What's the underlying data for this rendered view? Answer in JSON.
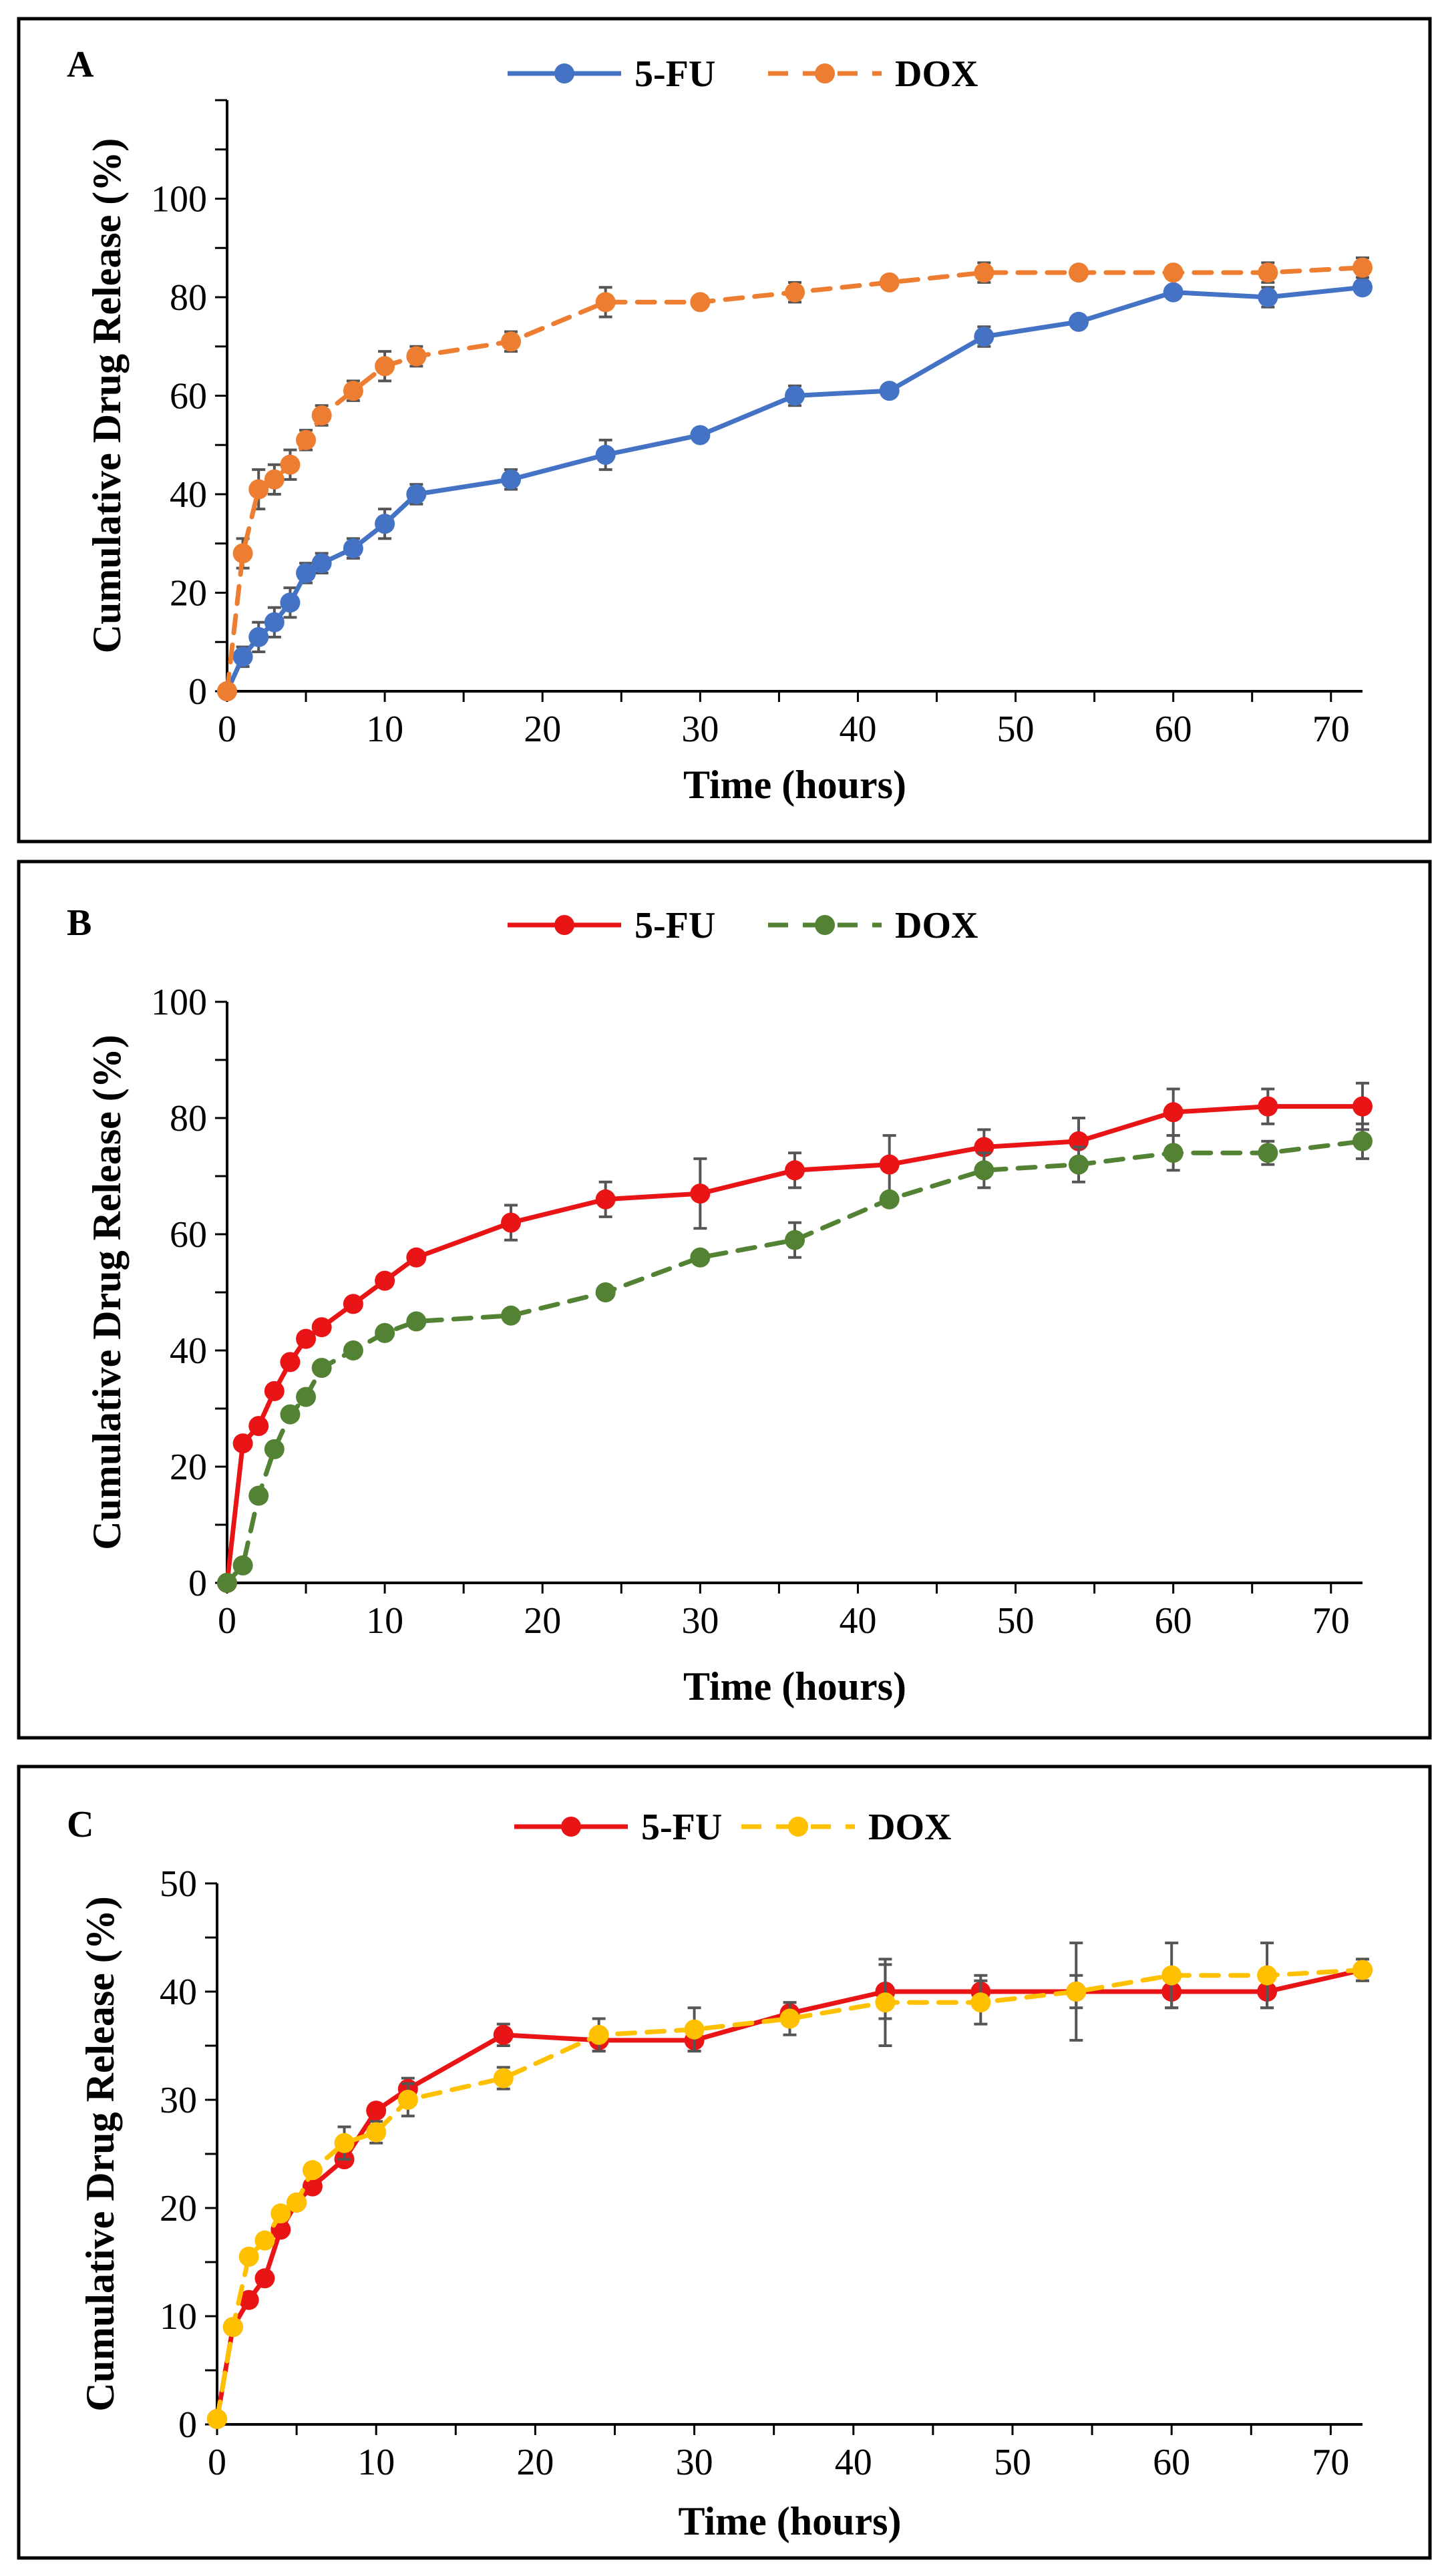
{
  "chart_data": [
    {
      "type": "line",
      "panel_label": "A",
      "title": "",
      "xlabel": "Time (hours)",
      "ylabel": "Cumulative Drug Release (%)",
      "xlim": [
        0,
        72
      ],
      "ylim": [
        0,
        120
      ],
      "xticks": [
        0,
        10,
        20,
        30,
        40,
        50,
        60,
        70
      ],
      "yticks": [
        0,
        20,
        40,
        60,
        80,
        100
      ],
      "ytick_labels": [
        "0",
        "20",
        "40",
        "60",
        "80",
        "100"
      ],
      "xtick_labels": [
        "0",
        "10",
        "20",
        "30",
        "40",
        "50",
        "60",
        "70"
      ],
      "legend": "top-center",
      "grid": false,
      "x": [
        0,
        1,
        2,
        3,
        4,
        5,
        6,
        8,
        10,
        12,
        18,
        24,
        30,
        36,
        42,
        48,
        54,
        60,
        66,
        72
      ],
      "series": [
        {
          "name": "5-FU",
          "color": "#4472C4",
          "dashed": false,
          "values": [
            0,
            7,
            11,
            14,
            18,
            24,
            26,
            29,
            34,
            40,
            43,
            48,
            52,
            60,
            61,
            72,
            75,
            81,
            80,
            82
          ],
          "errors": [
            0,
            2,
            3,
            3,
            3,
            2,
            2,
            2,
            3,
            2,
            2,
            3,
            1,
            2,
            1,
            2,
            1,
            1,
            2,
            1
          ]
        },
        {
          "name": "DOX",
          "color": "#ED7D31",
          "dashed": true,
          "values": [
            0,
            28,
            41,
            43,
            46,
            51,
            56,
            61,
            66,
            68,
            71,
            79,
            79,
            81,
            83,
            85,
            85,
            85,
            85,
            86
          ],
          "errors": [
            0,
            3,
            4,
            3,
            3,
            2,
            2,
            2,
            3,
            2,
            2,
            3,
            1,
            2,
            1,
            2,
            1,
            1,
            2,
            2
          ]
        }
      ]
    },
    {
      "type": "line",
      "panel_label": "B",
      "title": "",
      "xlabel": "Time (hours)",
      "ylabel": "Cumulative Drug Release (%)",
      "xlim": [
        0,
        72
      ],
      "ylim": [
        0,
        100
      ],
      "xticks": [
        0,
        10,
        20,
        30,
        40,
        50,
        60,
        70
      ],
      "yticks": [
        0,
        20,
        40,
        60,
        80,
        100
      ],
      "ytick_labels": [
        "0",
        "20",
        "40",
        "60",
        "80",
        "100"
      ],
      "xtick_labels": [
        "0",
        "10",
        "20",
        "30",
        "40",
        "50",
        "60",
        "70"
      ],
      "legend": "top-center",
      "grid": false,
      "x": [
        0,
        1,
        2,
        3,
        4,
        5,
        6,
        8,
        10,
        12,
        18,
        24,
        30,
        36,
        42,
        48,
        54,
        60,
        66,
        72
      ],
      "series": [
        {
          "name": "5-FU",
          "color": "#E81416",
          "dashed": false,
          "values": [
            0,
            24,
            27,
            33,
            38,
            42,
            44,
            48,
            52,
            56,
            62,
            66,
            67,
            71,
            72,
            75,
            76,
            81,
            82,
            82
          ],
          "errors": [
            0,
            1,
            1,
            1,
            1,
            1,
            1,
            1,
            1,
            1,
            3,
            3,
            6,
            3,
            5,
            3,
            4,
            4,
            3,
            4
          ]
        },
        {
          "name": "DOX",
          "color": "#548235",
          "dashed": true,
          "values": [
            0,
            3,
            15,
            23,
            29,
            32,
            37,
            40,
            43,
            45,
            46,
            50,
            56,
            59,
            66,
            71,
            72,
            74,
            74,
            76
          ],
          "errors": [
            0,
            1,
            1,
            1,
            1,
            1,
            1,
            1,
            1,
            1,
            1,
            1,
            1,
            3,
            1,
            3,
            3,
            3,
            2,
            3
          ]
        }
      ]
    },
    {
      "type": "line",
      "panel_label": "C",
      "title": "",
      "xlabel": "Time (hours)",
      "ylabel": "Cumulative Drug Release (%)",
      "xlim": [
        0,
        72
      ],
      "ylim": [
        0,
        50
      ],
      "xticks": [
        0,
        10,
        20,
        30,
        40,
        50,
        60,
        70
      ],
      "yticks": [
        0,
        10,
        20,
        30,
        40,
        50
      ],
      "ytick_labels": [
        "0",
        "10",
        "20",
        "30",
        "40",
        "50"
      ],
      "xtick_labels": [
        "0",
        "10",
        "20",
        "30",
        "40",
        "50",
        "60",
        "70"
      ],
      "legend": "top-center",
      "grid": false,
      "x": [
        0,
        1,
        2,
        3,
        4,
        5,
        6,
        8,
        10,
        12,
        18,
        24,
        30,
        36,
        42,
        48,
        54,
        60,
        66,
        72
      ],
      "series": [
        {
          "name": "5-FU",
          "color": "#E81416",
          "dashed": false,
          "values": [
            0.5,
            9,
            11.5,
            13.5,
            18,
            20.5,
            22,
            24.5,
            29,
            31,
            36,
            35.5,
            35.5,
            38,
            40,
            40,
            40,
            40,
            40,
            42
          ],
          "errors": [
            0,
            0.3,
            0.3,
            0.3,
            0.3,
            0.3,
            0.3,
            0.3,
            0.3,
            1,
            1,
            1,
            1,
            1,
            2.5,
            1.5,
            1.5,
            1.5,
            1.5,
            1
          ]
        },
        {
          "name": "DOX",
          "color": "#FFC000",
          "dashed": true,
          "values": [
            0.5,
            9,
            15.5,
            17,
            19.5,
            20.5,
            23.5,
            26,
            27,
            30,
            32,
            36,
            36.5,
            37.5,
            39,
            39,
            40,
            41.5,
            41.5,
            42
          ],
          "errors": [
            0,
            0.3,
            0.3,
            0.3,
            0.3,
            0.3,
            0.3,
            1.5,
            1,
            1.5,
            1,
            1.5,
            2,
            1.5,
            4,
            2,
            4.5,
            3,
            3,
            1
          ]
        }
      ]
    }
  ]
}
